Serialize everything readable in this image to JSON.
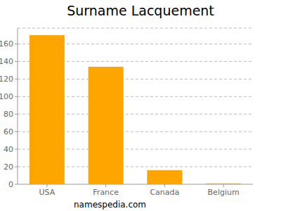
{
  "chart_data": {
    "type": "bar",
    "title": "Surname Lacquement",
    "categories": [
      "USA",
      "France",
      "Canada",
      "Belgium"
    ],
    "values": [
      170,
      134,
      16,
      1
    ],
    "color": "#ffa500",
    "ylim": [
      0,
      178
    ],
    "yticks": [
      0,
      20,
      40,
      60,
      80,
      100,
      120,
      140,
      160
    ],
    "grid": true,
    "annotations": [
      "namespedia.com"
    ]
  }
}
